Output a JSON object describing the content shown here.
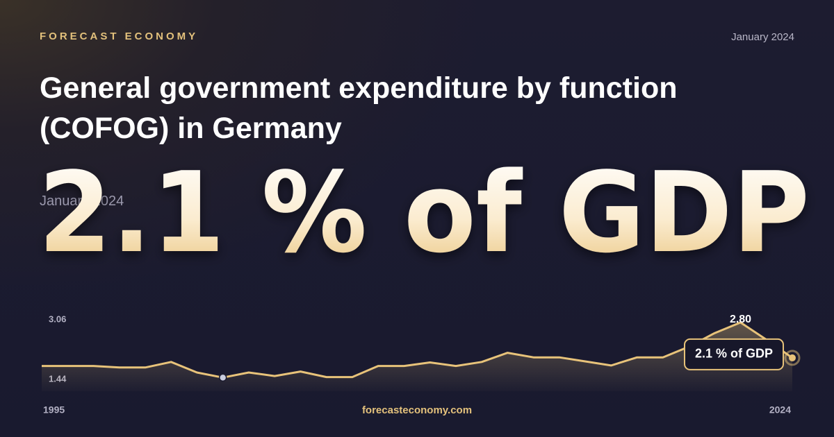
{
  "brand": "FORECAST ECONOMY",
  "date": "January 2024",
  "title": "General government expenditure by function (COFOG) in Germany",
  "headline": "2.1 % of GDP",
  "footer": "forecasteconomy.com",
  "chart_data": {
    "type": "line",
    "x": [
      1995,
      1996,
      1997,
      1998,
      1999,
      2000,
      2001,
      2002,
      2003,
      2004,
      2005,
      2006,
      2007,
      2008,
      2009,
      2010,
      2011,
      2012,
      2013,
      2014,
      2015,
      2016,
      2017,
      2018,
      2019,
      2020,
      2021,
      2022,
      2023,
      2024
    ],
    "values": [
      1.94,
      1.94,
      1.94,
      1.91,
      1.91,
      2.02,
      1.81,
      1.71,
      1.81,
      1.74,
      1.83,
      1.72,
      1.72,
      1.94,
      1.94,
      2.01,
      1.94,
      2.02,
      2.2,
      2.11,
      2.11,
      2.03,
      1.95,
      2.11,
      2.11,
      2.32,
      2.59,
      2.8,
      2.46,
      2.1
    ],
    "value_labels": [
      null,
      null,
      null,
      null,
      null,
      null,
      null,
      null,
      null,
      null,
      null,
      null,
      null,
      null,
      null,
      null,
      null,
      null,
      null,
      null,
      null,
      null,
      null,
      null,
      null,
      null,
      null,
      "2.80",
      null,
      "2.1 % of GDP"
    ],
    "color": "#e8c37a",
    "xlim": [
      1995,
      2024
    ],
    "xticks": [
      1995,
      2024
    ],
    "ylim": [
      1.44,
      3.06
    ],
    "yticks": [
      3.06,
      1.44
    ]
  }
}
